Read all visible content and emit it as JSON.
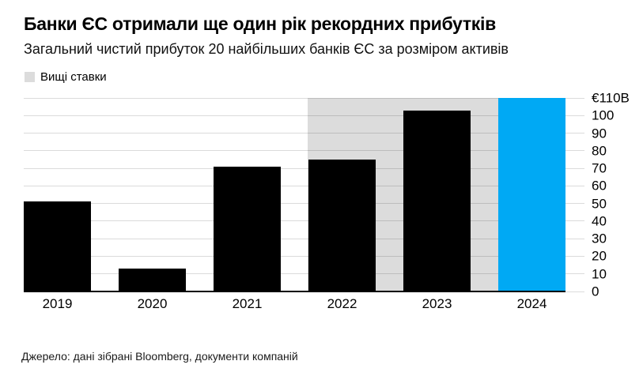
{
  "header": {
    "title": "Банки ЄС отримали ще один рік рекордних прибутків",
    "subtitle": "Загальний чистий прибуток 20 найбільших банків ЄС за розміром активів"
  },
  "legend": {
    "label": "Вищі ставки",
    "swatch_color": "#dcdcdc"
  },
  "chart_data": {
    "type": "bar",
    "title": "Банки ЄС отримали ще один рік рекордних прибутків",
    "subtitle": "Загальний чистий прибуток 20 найбільших банків ЄС за розміром активів",
    "categories": [
      "2019",
      "2020",
      "2021",
      "2022",
      "2023",
      "2024"
    ],
    "values": [
      51,
      13,
      71,
      75,
      103,
      110
    ],
    "bar_colors": [
      "#000000",
      "#000000",
      "#000000",
      "#000000",
      "#000000",
      "#00a9f4"
    ],
    "accent_color": "#00a9f4",
    "default_bar_color": "#000000",
    "ylim": [
      0,
      110
    ],
    "ytick_step": 10,
    "ytick_labels": [
      "0",
      "10",
      "20",
      "30",
      "40",
      "50",
      "60",
      "70",
      "80",
      "90",
      "100",
      "€110B"
    ],
    "yaxis_side": "right",
    "xlabel": "",
    "ylabel": "",
    "grid": true,
    "legend_position": "top-left",
    "highlight_band": {
      "label": "Вищі ставки",
      "from_category": "2022",
      "to_category": "2024",
      "color": "#dcdcdc"
    }
  },
  "source": {
    "text": "Джерело: дані зібрані Bloomberg, документи компаній"
  }
}
